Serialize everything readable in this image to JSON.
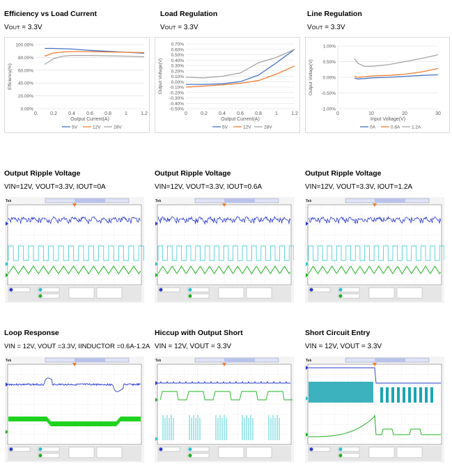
{
  "colors": {
    "blue": "#4472c4",
    "orange": "#ed7d31",
    "gray": "#a5a5a5",
    "scope_bg": "#000000",
    "ch1": "#2a3bcf",
    "ch2": "#22c4cf",
    "ch3": "#20b020"
  },
  "panels": {
    "efficiency": {
      "title": "Efficiency vs Load Current",
      "sub_main": "V",
      "sub_small": "OUT",
      "sub_rest": " = 3.3V"
    },
    "load_reg": {
      "title": "Load Regulation",
      "sub_main": "V",
      "sub_small": "OUT",
      "sub_rest": " = 3.3V"
    },
    "line_reg": {
      "title": "Line Regulation",
      "sub_main": "V",
      "sub_small": "OUT",
      "sub_rest": " = 3.3V"
    },
    "ripple0": {
      "title": "Output Ripple Voltage",
      "sub": "VIN=12V, VOUT=3.3V, IOUT=0A",
      "scope_label": "Tek"
    },
    "ripple06": {
      "title": "Output Ripple Voltage",
      "sub": "VIN=12V, VOUT=3.3V, IOUT=0.6A",
      "scope_label": "Tek"
    },
    "ripple12": {
      "title": "Output Ripple Voltage",
      "sub": "VIN=12V, VOUT=3.3V, IOUT=1.2A",
      "scope_label": "Tek"
    },
    "loop": {
      "title": "Loop Response",
      "sub": "VIN = 12V, VOUT =3.3V, IINDUCTOR =0.6A-1.2A",
      "scope_label": "Tek"
    },
    "hiccup": {
      "title": "Hiccup with Output Short",
      "sub": "VIN = 12V, VOUT = 3.3V",
      "scope_label": "Tek"
    },
    "short": {
      "title": "Short Circuit Entry",
      "sub": "VIN = 12V, VOUT = 3.3V",
      "scope_label": "Tek"
    }
  },
  "chart_data": [
    {
      "id": "efficiency",
      "type": "line",
      "title": "Efficiency vs Load Current",
      "xlabel": "Output Current(A)",
      "ylabel": "Efficiency(%)",
      "xlim": [
        0,
        1.2
      ],
      "ylim": [
        0,
        100
      ],
      "x_ticks": [
        "0",
        "0.2",
        "0.4",
        "0.6",
        "0.8",
        "1",
        "1.2"
      ],
      "y_ticks": [
        "0.00%",
        "20.00%",
        "40.00%",
        "60.00%",
        "80.00%",
        "100.00%"
      ],
      "series": [
        {
          "name": "5V",
          "color": "#4472c4",
          "x": [
            0.1,
            0.2,
            0.3,
            0.4,
            0.6,
            0.8,
            1.0,
            1.2
          ],
          "y": [
            94,
            94,
            93.5,
            93,
            91,
            89.5,
            88,
            86.5
          ]
        },
        {
          "name": "12V",
          "color": "#ed7d31",
          "x": [
            0.1,
            0.2,
            0.3,
            0.4,
            0.6,
            0.8,
            1.0,
            1.2
          ],
          "y": [
            82,
            87,
            88.5,
            89,
            89,
            88.5,
            88,
            87.5
          ]
        },
        {
          "name": "28V",
          "color": "#a5a5a5",
          "x": [
            0.1,
            0.2,
            0.3,
            0.4,
            0.6,
            0.8,
            1.0,
            1.2
          ],
          "y": [
            69,
            78,
            82,
            83,
            83,
            82.5,
            82,
            81
          ]
        }
      ]
    },
    {
      "id": "load_reg",
      "type": "line",
      "title": "Load Regulation",
      "xlabel": "Output Current(A)",
      "ylabel": "Output Voltage(V)",
      "xlim": [
        0,
        1.2
      ],
      "ylim": [
        -0.5,
        0.7
      ],
      "x_ticks": [
        "0",
        "0.2",
        "0.4",
        "0.6",
        "0.8",
        "1",
        "1.2"
      ],
      "y_ticks": [
        "-0.50%",
        "-0.40%",
        "-0.30%",
        "-0.20%",
        "-0.10%",
        "0.00%",
        "0.10%",
        "0.20%",
        "0.30%",
        "0.40%",
        "0.50%",
        "0.60%",
        "0.70%"
      ],
      "series": [
        {
          "name": "5V",
          "color": "#4472c4",
          "x": [
            0,
            0.2,
            0.4,
            0.6,
            0.8,
            1.0,
            1.2
          ],
          "y": [
            -0.05,
            -0.05,
            -0.04,
            0.0,
            0.12,
            0.35,
            0.6
          ]
        },
        {
          "name": "12V",
          "color": "#ed7d31",
          "x": [
            0,
            0.2,
            0.4,
            0.6,
            0.8,
            1.0,
            1.2
          ],
          "y": [
            -0.1,
            -0.08,
            -0.06,
            -0.03,
            0.02,
            0.14,
            0.29
          ]
        },
        {
          "name": "28V",
          "color": "#a5a5a5",
          "x": [
            0,
            0.2,
            0.4,
            0.6,
            0.8,
            1.0,
            1.2
          ],
          "y": [
            0.08,
            0.07,
            0.1,
            0.16,
            0.35,
            0.45,
            0.6
          ]
        }
      ]
    },
    {
      "id": "line_reg",
      "type": "line",
      "title": "Line Regulation",
      "xlabel": "Input Voltage(V)",
      "ylabel": "Output Voltage(V)",
      "xlim": [
        0,
        30
      ],
      "ylim": [
        -1,
        1
      ],
      "x_ticks": [
        "0",
        "10",
        "20",
        "30"
      ],
      "y_ticks": [
        "-1.00%",
        "-0.50%",
        "0.00%",
        "0.50%",
        "1.00%"
      ],
      "series": [
        {
          "name": "0A",
          "color": "#4472c4",
          "x": [
            5,
            6,
            8,
            10,
            15,
            20,
            25,
            30
          ],
          "y": [
            -0.03,
            -0.05,
            -0.04,
            -0.02,
            0.0,
            0.03,
            0.06,
            0.08
          ]
        },
        {
          "name": "0.6A",
          "color": "#ed7d31",
          "x": [
            5,
            6,
            8,
            10,
            15,
            20,
            25,
            30
          ],
          "y": [
            0.03,
            0.0,
            0.02,
            0.04,
            0.06,
            0.1,
            0.17,
            0.28
          ]
        },
        {
          "name": "1.2A",
          "color": "#a5a5a5",
          "x": [
            5,
            6,
            8,
            10,
            15,
            20,
            25,
            30
          ],
          "y": [
            0.6,
            0.45,
            0.35,
            0.35,
            0.4,
            0.5,
            0.6,
            0.72
          ]
        }
      ]
    }
  ]
}
